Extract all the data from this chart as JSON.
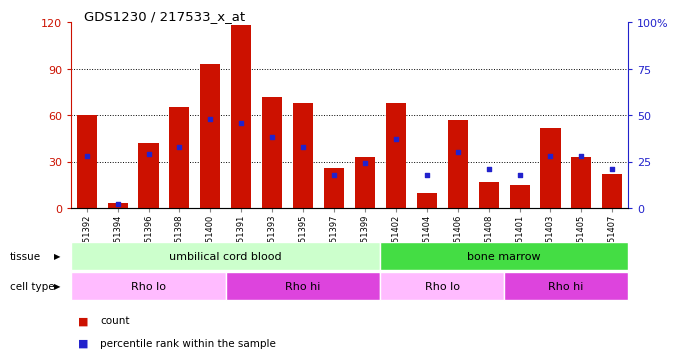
{
  "title": "GDS1230 / 217533_x_at",
  "samples": [
    "GSM51392",
    "GSM51394",
    "GSM51396",
    "GSM51398",
    "GSM51400",
    "GSM51391",
    "GSM51393",
    "GSM51395",
    "GSM51397",
    "GSM51399",
    "GSM51402",
    "GSM51404",
    "GSM51406",
    "GSM51408",
    "GSM51401",
    "GSM51403",
    "GSM51405",
    "GSM51407"
  ],
  "counts": [
    60,
    3,
    42,
    65,
    93,
    118,
    72,
    68,
    26,
    33,
    68,
    10,
    57,
    17,
    15,
    52,
    33,
    22
  ],
  "percentiles": [
    28,
    2,
    29,
    33,
    48,
    46,
    38,
    33,
    18,
    24,
    37,
    18,
    30,
    21,
    18,
    28,
    28,
    21
  ],
  "ylim_left": [
    0,
    120
  ],
  "ylim_right": [
    0,
    100
  ],
  "yticks_left": [
    0,
    30,
    60,
    90,
    120
  ],
  "yticks_right": [
    0,
    25,
    50,
    75,
    100
  ],
  "ytick_labels_left": [
    "0",
    "30",
    "60",
    "90",
    "120"
  ],
  "ytick_labels_right": [
    "0",
    "25",
    "50",
    "75",
    "100%"
  ],
  "bar_color": "#cc1100",
  "dot_color": "#2222cc",
  "grid_color": "#000000",
  "tissue_groups": [
    {
      "label": "umbilical cord blood",
      "start": 0,
      "end": 10,
      "color": "#ccffcc"
    },
    {
      "label": "bone marrow",
      "start": 10,
      "end": 18,
      "color": "#44dd44"
    }
  ],
  "cell_type_groups": [
    {
      "label": "Rho lo",
      "start": 0,
      "end": 5,
      "color": "#ffbbff"
    },
    {
      "label": "Rho hi",
      "start": 5,
      "end": 10,
      "color": "#dd44dd"
    },
    {
      "label": "Rho lo",
      "start": 10,
      "end": 14,
      "color": "#ffbbff"
    },
    {
      "label": "Rho hi",
      "start": 14,
      "end": 18,
      "color": "#dd44dd"
    }
  ],
  "legend_count_color": "#cc1100",
  "legend_pct_color": "#2222cc",
  "left_axis_color": "#cc1100",
  "right_axis_color": "#2222cc",
  "tissue_label": "tissue",
  "celltype_label": "cell type",
  "background_color": "#ffffff"
}
